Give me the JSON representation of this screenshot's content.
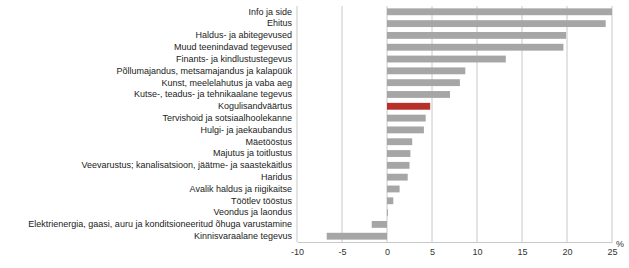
{
  "chart_data": {
    "type": "bar",
    "orientation": "horizontal",
    "categories": [
      "Info ja side",
      "Ehitus",
      "Haldus- ja abitegevused",
      "Muud teenindavad tegevused",
      "Finants- ja kindlustustegevus",
      "Põllumajandus, metsamajandus ja kalapüük",
      "Kunst, meelelahutus ja vaba aeg",
      "Kutse-, teadus- ja tehnikaalane tegevus",
      "Kogulisandväärtus",
      "Tervishoid ja sotsiaalhoolekanne",
      "Hulgi- ja jaekaubandus",
      "Mäetööstus",
      "Majutus ja toitlustus",
      "Veevarustus; kanalisatsioon, jäätme- ja saastekäitlus",
      "Haridus",
      "Avalik haldus ja riigikaitse",
      "Töötlev tööstus",
      "Veondus ja laondus",
      "Elektrienergia, gaasi, auru ja konditsioneeritud õhuga varustamine",
      "Kinnisvaraalane tegevus"
    ],
    "values": [
      25,
      24.3,
      19.9,
      19.6,
      13.2,
      8.7,
      8.1,
      7.0,
      4.8,
      4.3,
      4.1,
      2.8,
      2.6,
      2.5,
      2.3,
      1.4,
      0.7,
      0.1,
      -1.7,
      -6.7
    ],
    "colors": [
      "#a6a6a6",
      "#a6a6a6",
      "#a6a6a6",
      "#a6a6a6",
      "#a6a6a6",
      "#a6a6a6",
      "#a6a6a6",
      "#a6a6a6",
      "#b8302a",
      "#a6a6a6",
      "#a6a6a6",
      "#a6a6a6",
      "#a6a6a6",
      "#a6a6a6",
      "#a6a6a6",
      "#a6a6a6",
      "#a6a6a6",
      "#a6a6a6",
      "#a6a6a6",
      "#a6a6a6"
    ],
    "xlabel": "%",
    "xlim": [
      -10,
      25
    ],
    "xticks": [
      -10,
      -5,
      0,
      5,
      10,
      15,
      20,
      25
    ],
    "grid": true
  }
}
